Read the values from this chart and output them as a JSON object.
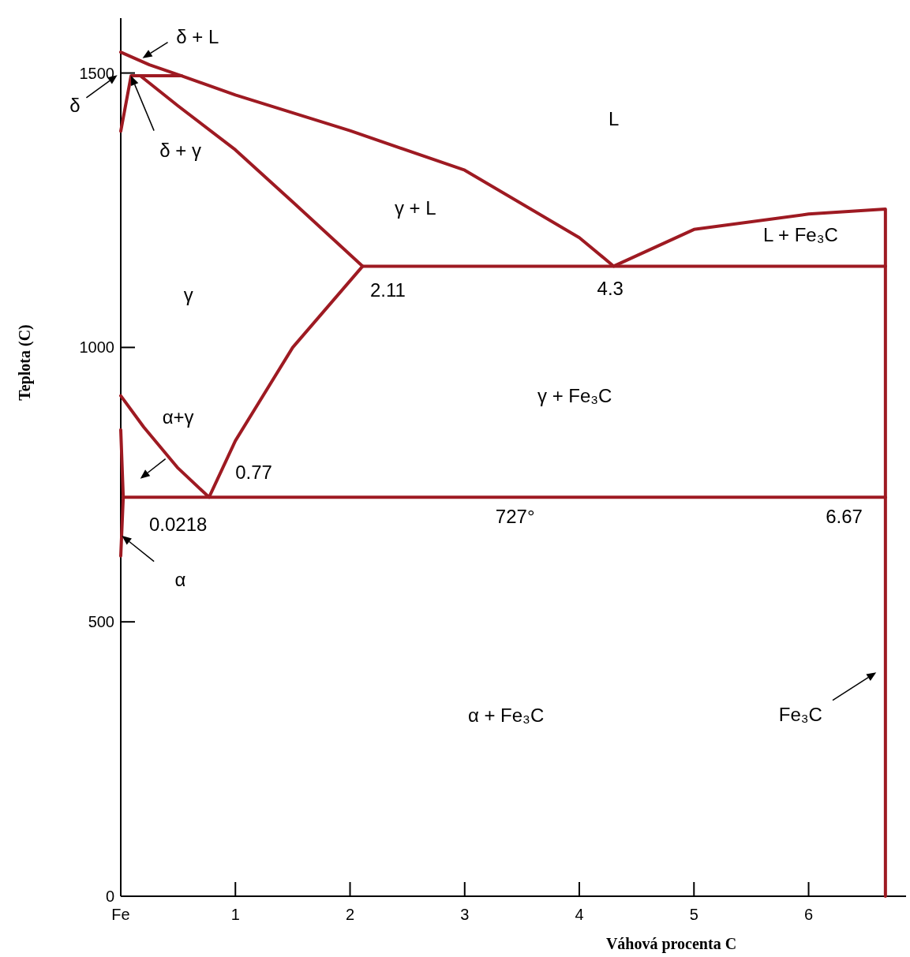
{
  "chart_data": {
    "type": "line",
    "xlabel": "Váhová procenta C",
    "ylabel": "Teplota (C)",
    "xlim": [
      0,
      6.85
    ],
    "ylim": [
      0,
      1600
    ],
    "xticks": [
      {
        "value": 0,
        "label": "Fe"
      },
      1,
      2,
      3,
      4,
      5,
      6
    ],
    "yticks": [
      0,
      500,
      1000,
      1500
    ],
    "grid": false,
    "marker": "none",
    "line_style": "solid",
    "series": [
      {
        "color": "#9e1a22",
        "x": [
          0,
          0.25,
          0.53,
          1,
          2,
          3,
          4,
          4.3,
          5,
          6,
          6.67,
          6.67
        ],
        "values": [
          1538,
          1515,
          1495,
          1460,
          1395,
          1323,
          1200,
          1148,
          1215,
          1243,
          1252,
          0
        ]
      },
      {
        "color": "#9e1a22",
        "x": [
          0,
          0.05,
          0.09,
          0.53
        ],
        "values": [
          1394,
          1450,
          1495,
          1495
        ]
      },
      {
        "color": "#9e1a22",
        "x": [
          0.17,
          0.5,
          1,
          1.5,
          2.11,
          1.5,
          1,
          0.77,
          0.5,
          0.2,
          0
        ],
        "values": [
          1495,
          1440,
          1360,
          1265,
          1148,
          1000,
          830,
          727,
          780,
          855,
          912
        ]
      },
      {
        "color": "#9e1a22",
        "x": [
          2.11,
          6.67
        ],
        "values": [
          1148,
          1148
        ]
      },
      {
        "color": "#9e1a22",
        "x": [
          0.0218,
          6.67
        ],
        "values": [
          727,
          727
        ]
      },
      {
        "color": "#9e1a22",
        "x": [
          0,
          0.0218,
          0
        ],
        "values": [
          850,
          727,
          620
        ]
      }
    ],
    "annotations": [
      "δ + L",
      "L",
      "γ + L",
      "L + Fe₃C",
      "γ",
      "2.11",
      "4.3",
      "α+γ",
      "0.77",
      "γ + Fe₃C",
      "0.0218",
      "727°",
      "6.67",
      "α",
      "α + Fe₃C",
      "Fe₃C",
      "δ",
      "δ + γ"
    ]
  }
}
